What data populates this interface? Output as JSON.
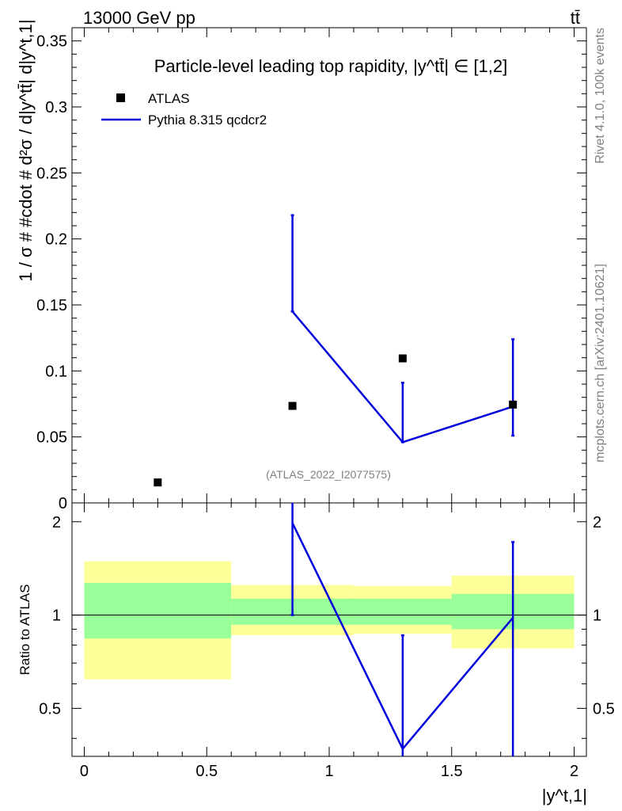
{
  "header": {
    "energy_label": "13000 GeV pp",
    "process_label": "tt̄"
  },
  "side_labels": {
    "rivet": "Rivet 4.1.0,  100k events",
    "mcplots": "mcplots.cern.ch [arXiv:2401.10621]"
  },
  "colors": {
    "data": "#000000",
    "mc": "#0000dd",
    "band_inner": "#99ff99",
    "band_outer": "#ffff99"
  },
  "chart_data": [
    {
      "panel": "main",
      "type": "scatter",
      "title": "Particle-level leading top rapidity, |y^tt̄| ∈ [1,2]",
      "xlabel": "|y^t,1|",
      "ylabel": "1 / σ # #cdot # d²σ / d|y^tt̄| d|y^t,1|",
      "xlim": [
        -0.05,
        2.05
      ],
      "ylim": [
        0,
        0.36
      ],
      "yticks": [
        0,
        0.05,
        0.1,
        0.15,
        0.2,
        0.25,
        0.3,
        0.35
      ],
      "ytick_labels": [
        "0",
        "0.05",
        "0.1",
        "0.15",
        "0.2",
        "0.25",
        "0.3",
        "0.35"
      ],
      "watermark": "(ATLAS_2022_I2077575)",
      "legend": [
        "ATLAS",
        "Pythia 8.315 qcdcr2"
      ],
      "series": [
        {
          "name": "ATLAS",
          "kind": "markers",
          "x": [
            0.3,
            0.85,
            1.3,
            1.75
          ],
          "y": [
            0.0155,
            0.0735,
            0.1095,
            0.0745
          ]
        },
        {
          "name": "Pythia 8.315 qcdcr2",
          "kind": "line",
          "x": [
            0.85,
            1.3,
            1.75
          ],
          "y": [
            0.145,
            0.046,
            0.073
          ],
          "yerr_low": [
            0.145,
            0.046,
            0.051
          ],
          "yerr_high": [
            0.218,
            0.091,
            0.124
          ]
        }
      ]
    },
    {
      "panel": "ratio",
      "type": "line",
      "ylabel": "Ratio to ATLAS",
      "xlabel": "|y^t,1|",
      "xlim": [
        -0.05,
        2.05
      ],
      "ylim": [
        0.35,
        2.3
      ],
      "yticks": [
        0.5,
        1,
        2
      ],
      "ytick_labels": [
        "0.5",
        "1",
        "2"
      ],
      "xticks": [
        0,
        0.5,
        1,
        1.5,
        2
      ],
      "xtick_labels": [
        "0",
        "0.5",
        "1",
        "1.5",
        "2"
      ],
      "uncertainty_bands": [
        {
          "x_low": 0.0,
          "x_high": 0.6,
          "inner": [
            0.84,
            1.27
          ],
          "outer": [
            0.62,
            1.49
          ]
        },
        {
          "x_low": 0.6,
          "x_high": 1.1,
          "inner": [
            0.93,
            1.13
          ],
          "outer": [
            0.86,
            1.25
          ]
        },
        {
          "x_low": 1.1,
          "x_high": 1.5,
          "inner": [
            0.93,
            1.13
          ],
          "outer": [
            0.87,
            1.24
          ]
        },
        {
          "x_low": 1.5,
          "x_high": 2.0,
          "inner": [
            0.9,
            1.17
          ],
          "outer": [
            0.78,
            1.34
          ]
        }
      ],
      "series": [
        {
          "name": "Pythia 8.315 qcdcr2",
          "x": [
            0.85,
            1.3,
            1.75
          ],
          "y": [
            1.98,
            0.37,
            0.98
          ],
          "yerr_low": [
            1.0,
            0.0,
            0.3
          ],
          "yerr_high": [
            2.35,
            0.86,
            1.72
          ]
        }
      ]
    }
  ]
}
